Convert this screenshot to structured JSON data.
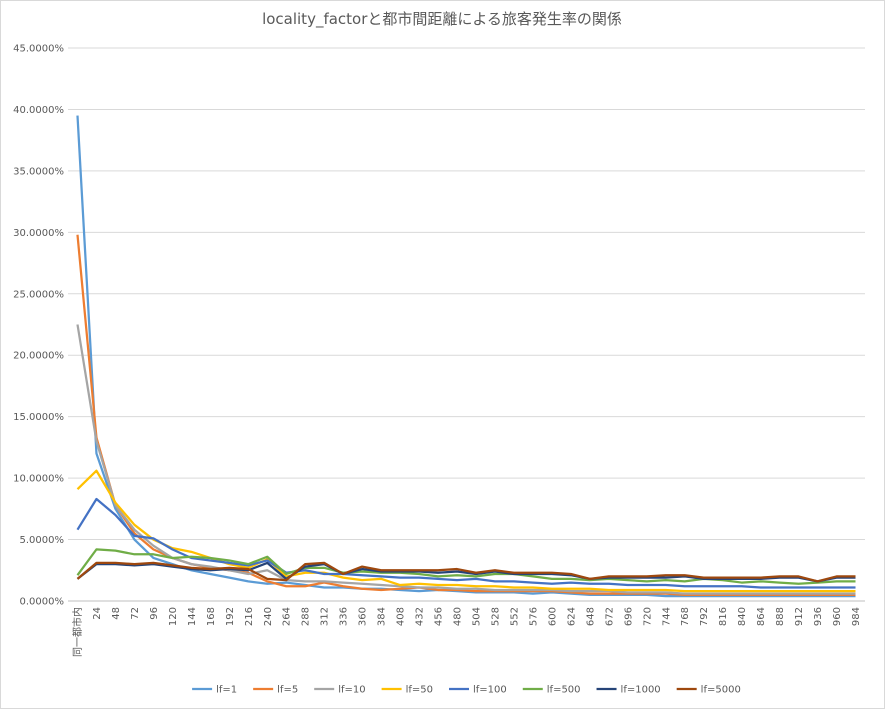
{
  "chart_data": {
    "type": "line",
    "title": "locality_factorと都市間距離による旅客発生率の関係",
    "categories": [
      "同一都市内",
      "24",
      "48",
      "72",
      "96",
      "120",
      "144",
      "168",
      "192",
      "216",
      "240",
      "264",
      "288",
      "312",
      "336",
      "360",
      "384",
      "408",
      "432",
      "456",
      "480",
      "504",
      "528",
      "552",
      "576",
      "600",
      "624",
      "648",
      "672",
      "696",
      "720",
      "744",
      "768",
      "792",
      "816",
      "840",
      "864",
      "888",
      "912",
      "936",
      "960",
      "984"
    ],
    "ylim": [
      0,
      45
    ],
    "yticks": [
      {
        "value": 0,
        "label": "0.0000%"
      },
      {
        "value": 5,
        "label": "5.0000%"
      },
      {
        "value": 10,
        "label": "10.0000%"
      },
      {
        "value": 15,
        "label": "15.0000%"
      },
      {
        "value": 20,
        "label": "20.0000%"
      },
      {
        "value": 25,
        "label": "25.0000%"
      },
      {
        "value": 30,
        "label": "30.0000%"
      },
      {
        "value": 35,
        "label": "35.0000%"
      },
      {
        "value": 40,
        "label": "40.0000%"
      },
      {
        "value": 45,
        "label": "45.0000%"
      }
    ],
    "grid": true,
    "legend": "bottom",
    "series": [
      {
        "name": "lf=1",
        "color": "#5b9bd5",
        "values": [
          39.5,
          12,
          7.5,
          5,
          3.5,
          3,
          2.5,
          2.2,
          1.9,
          1.6,
          1.4,
          1.5,
          1.3,
          1.1,
          1.1,
          1.0,
          1.0,
          0.9,
          0.8,
          0.9,
          0.8,
          0.7,
          0.7,
          0.7,
          0.6,
          0.7,
          0.6,
          0.5,
          0.5,
          0.5,
          0.5,
          0.4,
          0.4,
          0.4,
          0.4,
          0.4,
          0.4,
          0.4,
          0.4,
          0.4,
          0.4,
          0.4
        ]
      },
      {
        "name": "lf=5",
        "color": "#ed7d31",
        "values": [
          29.8,
          13.3,
          7.8,
          5.5,
          4.2,
          3.5,
          3.0,
          2.7,
          2.5,
          2.3,
          1.6,
          1.2,
          1.2,
          1.5,
          1.2,
          1.0,
          0.9,
          1.0,
          1.1,
          0.9,
          0.9,
          0.8,
          0.8,
          0.8,
          0.8,
          0.8,
          0.7,
          0.6,
          0.6,
          0.6,
          0.6,
          0.6,
          0.5,
          0.5,
          0.5,
          0.5,
          0.5,
          0.5,
          0.5,
          0.5,
          0.5,
          0.5
        ]
      },
      {
        "name": "lf=10",
        "color": "#a5a5a5",
        "values": [
          22.5,
          13,
          7.8,
          5.8,
          4.5,
          3.5,
          3.0,
          2.8,
          2.5,
          2.2,
          2.5,
          1.7,
          1.6,
          1.6,
          1.5,
          1.4,
          1.3,
          1.2,
          1.1,
          1.1,
          1.0,
          1.0,
          0.9,
          0.9,
          0.9,
          0.9,
          0.8,
          0.8,
          0.8,
          0.7,
          0.7,
          0.7,
          0.6,
          0.6,
          0.6,
          0.6,
          0.6,
          0.6,
          0.6,
          0.6,
          0.6,
          0.6
        ]
      },
      {
        "name": "lf=50",
        "color": "#ffc000",
        "values": [
          9.1,
          10.6,
          8.0,
          6.2,
          5.0,
          4.3,
          4.0,
          3.5,
          3.0,
          2.7,
          3.4,
          2.0,
          2.3,
          2.3,
          1.9,
          1.7,
          1.8,
          1.3,
          1.4,
          1.3,
          1.3,
          1.2,
          1.2,
          1.1,
          1.1,
          1.0,
          1.0,
          1.0,
          0.9,
          0.9,
          0.9,
          0.9,
          0.8,
          0.8,
          0.8,
          0.8,
          0.8,
          0.8,
          0.8,
          0.8,
          0.8,
          0.8
        ]
      },
      {
        "name": "lf=100",
        "color": "#4472c4",
        "values": [
          5.8,
          8.3,
          7.0,
          5.3,
          5.1,
          4.2,
          3.5,
          3.3,
          3.1,
          2.9,
          3.3,
          2.3,
          2.5,
          2.2,
          2.2,
          2.1,
          2.0,
          1.9,
          1.9,
          1.8,
          1.7,
          1.8,
          1.6,
          1.6,
          1.5,
          1.4,
          1.5,
          1.4,
          1.4,
          1.3,
          1.3,
          1.3,
          1.2,
          1.2,
          1.2,
          1.2,
          1.1,
          1.1,
          1.1,
          1.1,
          1.1,
          1.1
        ]
      },
      {
        "name": "lf=500",
        "color": "#70ad47",
        "values": [
          2.1,
          4.2,
          4.1,
          3.8,
          3.8,
          3.5,
          3.6,
          3.5,
          3.3,
          3.0,
          3.6,
          2.2,
          2.7,
          2.7,
          2.3,
          2.4,
          2.3,
          2.3,
          2.2,
          2.0,
          2.1,
          2.0,
          2.2,
          2.2,
          2.0,
          1.8,
          1.8,
          1.7,
          1.8,
          1.7,
          1.6,
          1.7,
          1.6,
          1.8,
          1.7,
          1.5,
          1.6,
          1.5,
          1.4,
          1.5,
          1.6,
          1.6
        ]
      },
      {
        "name": "lf=1000",
        "color": "#264478",
        "values": [
          1.8,
          3.0,
          3.0,
          2.9,
          3.0,
          2.8,
          2.6,
          2.5,
          2.6,
          2.5,
          3.1,
          1.8,
          2.8,
          3.0,
          2.2,
          2.6,
          2.4,
          2.4,
          2.4,
          2.3,
          2.4,
          2.2,
          2.4,
          2.2,
          2.2,
          2.2,
          2.1,
          1.8,
          1.9,
          1.9,
          1.9,
          1.9,
          2.0,
          1.8,
          1.8,
          1.8,
          1.8,
          1.9,
          1.9,
          1.6,
          1.9,
          1.9
        ]
      },
      {
        "name": "lf=5000",
        "color": "#9e480e",
        "values": [
          1.8,
          3.1,
          3.1,
          3.0,
          3.1,
          2.9,
          2.7,
          2.6,
          2.7,
          2.6,
          1.8,
          1.7,
          3.0,
          3.1,
          2.2,
          2.8,
          2.5,
          2.5,
          2.5,
          2.5,
          2.6,
          2.3,
          2.5,
          2.3,
          2.3,
          2.3,
          2.2,
          1.8,
          2.0,
          2.0,
          2.0,
          2.1,
          2.1,
          1.9,
          1.9,
          1.9,
          1.9,
          2.0,
          2.0,
          1.6,
          2.0,
          2.0
        ]
      }
    ]
  }
}
